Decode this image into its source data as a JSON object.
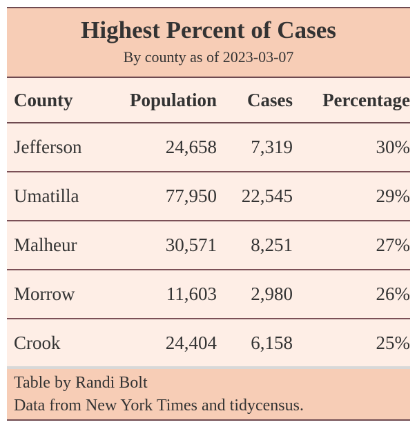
{
  "table": {
    "title": "Highest Percent of Cases",
    "subtitle": "By county as of 2023-03-07",
    "columns": [
      "County",
      "Population",
      "Cases",
      "Percentage"
    ],
    "rows": [
      {
        "county": "Jefferson",
        "population": "24,658",
        "cases": "7,319",
        "percentage": "30%"
      },
      {
        "county": "Umatilla",
        "population": "77,950",
        "cases": "22,545",
        "percentage": "29%"
      },
      {
        "county": "Malheur",
        "population": "30,571",
        "cases": "8,251",
        "percentage": "27%"
      },
      {
        "county": "Morrow",
        "population": "11,603",
        "cases": "2,980",
        "percentage": "26%"
      },
      {
        "county": "Crook",
        "population": "24,404",
        "cases": "6,158",
        "percentage": "25%"
      }
    ],
    "footnotes": [
      "Table by Randi Bolt",
      "Data from New York Times and tidycensus."
    ]
  },
  "colors": {
    "title_bg": "#f7cdb6",
    "body_bg": "#feeee6",
    "rule": "#6e4a50",
    "text": "#333333"
  }
}
